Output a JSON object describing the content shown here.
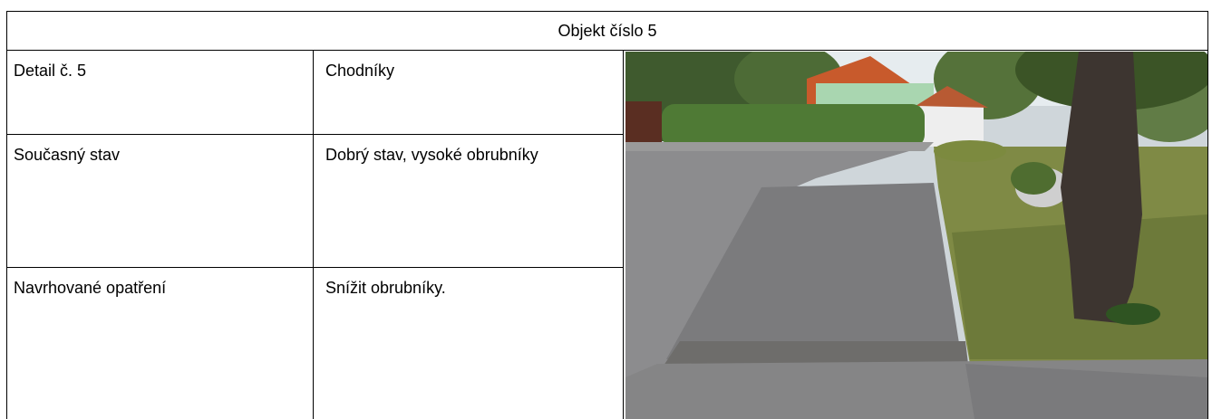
{
  "header": {
    "title": "Objekt číslo 5"
  },
  "table": {
    "rows": [
      [
        "Detail č. 5",
        "Chodníky"
      ],
      [
        "Současný stav",
        "Dobrý stav, vysoké obrubníky"
      ],
      [
        "Navrhované opatření",
        "Snížit obrubníky."
      ]
    ]
  }
}
